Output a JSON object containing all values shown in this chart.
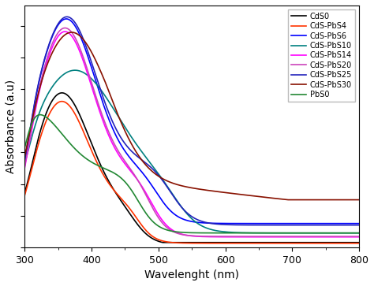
{
  "xlabel": "Wavelenght (nm)",
  "ylabel": "Absorbance (a.u)",
  "xlim": [
    300,
    800
  ],
  "series": [
    {
      "label": "CdS0",
      "color": "#000000"
    },
    {
      "label": "CdS-PbS4",
      "color": "#ff3300"
    },
    {
      "label": "CdS-PbS6",
      "color": "#0000ff"
    },
    {
      "label": "CdS-PbS10",
      "color": "#008080"
    },
    {
      "label": "CdS-PbS14",
      "color": "#ff00ff"
    },
    {
      "label": "CdS-PbS20",
      "color": "#cc44bb"
    },
    {
      "label": "CdS-PbS25",
      "color": "#2222bb"
    },
    {
      "label": "CdS-PbS30",
      "color": "#881100"
    },
    {
      "label": "PbS0",
      "color": "#228833"
    }
  ]
}
